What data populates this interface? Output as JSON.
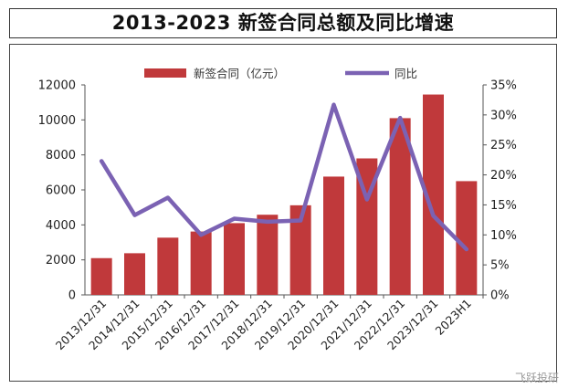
{
  "chart_data": {
    "type": "bar",
    "title": "2013-2023 新签合同总额及同比增速",
    "categories": [
      "2013/12/31",
      "2014/12/31",
      "2015/12/31",
      "2016/12/31",
      "2017/12/31",
      "2018/12/31",
      "2019/12/31",
      "2020/12/31",
      "2021/12/31",
      "2022/12/31",
      "2023/12/31",
      "2023H1"
    ],
    "series": [
      {
        "name": "新签合同（亿元）",
        "type": "bar",
        "axis": "left",
        "color": "#c0393b",
        "values": [
          2100,
          2380,
          3270,
          3620,
          4100,
          4580,
          5120,
          6760,
          7800,
          10100,
          11450,
          6500
        ]
      },
      {
        "name": "同比",
        "type": "line",
        "axis": "right",
        "color": "#7b62b3",
        "values": [
          22.3,
          13.3,
          16.2,
          10.0,
          12.7,
          12.2,
          12.4,
          31.7,
          15.9,
          29.5,
          13.2,
          7.6
        ]
      }
    ],
    "y_left": {
      "min": 0,
      "max": 12000,
      "ticks": [
        "0",
        "2000",
        "4000",
        "6000",
        "8000",
        "10000",
        "12000"
      ]
    },
    "y_right": {
      "min": 0,
      "max": 35,
      "ticks": [
        "0%",
        "5%",
        "10%",
        "15%",
        "20%",
        "25%",
        "30%",
        "35%"
      ]
    },
    "grid": false,
    "legend": "top-center"
  },
  "watermark": "飞跃投研"
}
